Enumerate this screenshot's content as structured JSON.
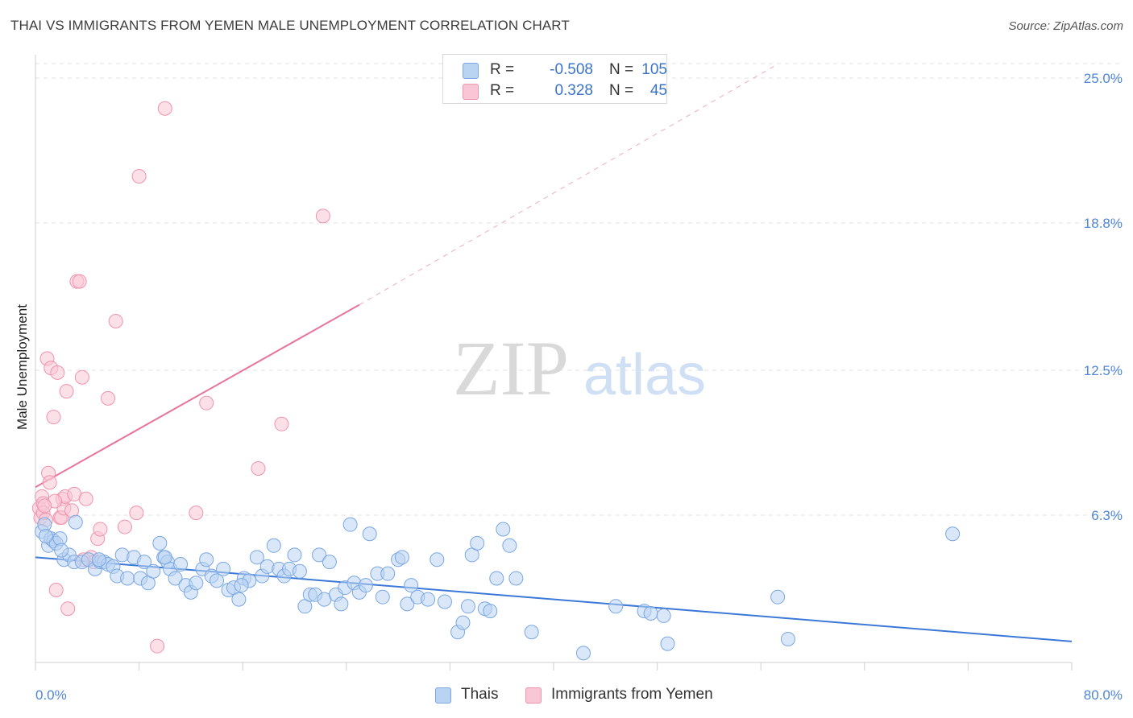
{
  "header": {
    "title": "THAI VS IMMIGRANTS FROM YEMEN MALE UNEMPLOYMENT CORRELATION CHART",
    "source": "Source: ZipAtlas.com"
  },
  "watermark": {
    "zip": "ZIP",
    "atlas": "atlas"
  },
  "legend": {
    "rows": [
      {
        "r_label": "R =",
        "r_value": "-0.508",
        "n_label": "N =",
        "n_value": "105",
        "fill": "#b9d3f3",
        "stroke": "#7aa7e3"
      },
      {
        "r_label": "R =",
        "r_value": "0.328",
        "n_label": "N =",
        "n_value": "45",
        "fill": "#f9c6d5",
        "stroke": "#ef93ad"
      }
    ]
  },
  "bottom_legend": [
    {
      "label": "Thais",
      "fill": "#b9d3f3",
      "stroke": "#7aa7e3"
    },
    {
      "label": "Immigrants from Yemen",
      "fill": "#f9c6d5",
      "stroke": "#ef93ad"
    }
  ],
  "chart_data": {
    "type": "scatter",
    "title": "THAI VS IMMIGRANTS FROM YEMEN MALE UNEMPLOYMENT CORRELATION CHART",
    "xlabel": "",
    "ylabel": "Male Unemployment",
    "xlim": [
      0,
      80
    ],
    "ylim": [
      0,
      26
    ],
    "x_tick_labels": [
      "0.0%",
      "80.0%"
    ],
    "y_ticks": [
      6.3,
      12.5,
      18.8,
      25.0
    ],
    "y_tick_labels": [
      "6.3%",
      "12.5%",
      "18.8%",
      "25.0%"
    ],
    "grid": true,
    "legend_position": "top-center",
    "colors": {
      "thais": "#3b78d8",
      "yemen": "#e8739b"
    },
    "series": [
      {
        "name": "Thais",
        "color": "#7aa7e3",
        "trend": {
          "x": [
            0,
            80
          ],
          "y": [
            4.5,
            0.9
          ],
          "style": "solid"
        },
        "points": [
          [
            0.5,
            5.6
          ],
          [
            0.7,
            5.9
          ],
          [
            1.0,
            5.0
          ],
          [
            1.2,
            5.3
          ],
          [
            1.4,
            5.2
          ],
          [
            1.6,
            5.1
          ],
          [
            1.9,
            5.3
          ],
          [
            2.2,
            4.4
          ],
          [
            2.6,
            4.6
          ],
          [
            3.1,
            6.0
          ],
          [
            3.0,
            4.3
          ],
          [
            3.6,
            4.3
          ],
          [
            4.1,
            4.4
          ],
          [
            4.6,
            4.0
          ],
          [
            5.0,
            4.3
          ],
          [
            5.3,
            4.3
          ],
          [
            5.6,
            4.2
          ],
          [
            6.0,
            4.1
          ],
          [
            6.3,
            3.7
          ],
          [
            6.7,
            4.6
          ],
          [
            7.1,
            3.6
          ],
          [
            7.6,
            4.5
          ],
          [
            8.1,
            3.6
          ],
          [
            8.4,
            4.3
          ],
          [
            8.7,
            3.4
          ],
          [
            9.1,
            3.9
          ],
          [
            9.6,
            5.1
          ],
          [
            9.9,
            4.5
          ],
          [
            10.2,
            4.3
          ],
          [
            10.4,
            4.0
          ],
          [
            10.8,
            3.6
          ],
          [
            11.2,
            4.2
          ],
          [
            11.6,
            3.3
          ],
          [
            12.0,
            3.0
          ],
          [
            12.4,
            3.4
          ],
          [
            12.9,
            4.0
          ],
          [
            13.2,
            4.4
          ],
          [
            13.6,
            3.7
          ],
          [
            14.0,
            3.5
          ],
          [
            14.5,
            4.0
          ],
          [
            14.9,
            3.1
          ],
          [
            15.3,
            3.2
          ],
          [
            15.7,
            2.7
          ],
          [
            16.1,
            3.6
          ],
          [
            16.5,
            3.5
          ],
          [
            17.1,
            4.5
          ],
          [
            17.5,
            3.7
          ],
          [
            17.9,
            4.1
          ],
          [
            18.4,
            5.0
          ],
          [
            18.8,
            4.0
          ],
          [
            19.2,
            3.7
          ],
          [
            19.6,
            4.0
          ],
          [
            20.0,
            4.6
          ],
          [
            20.4,
            3.9
          ],
          [
            20.8,
            2.4
          ],
          [
            21.2,
            2.9
          ],
          [
            21.6,
            2.9
          ],
          [
            21.9,
            4.6
          ],
          [
            22.3,
            2.7
          ],
          [
            22.7,
            4.3
          ],
          [
            23.2,
            2.9
          ],
          [
            23.6,
            2.5
          ],
          [
            23.9,
            3.2
          ],
          [
            24.3,
            5.9
          ],
          [
            24.6,
            3.4
          ],
          [
            25.0,
            3.0
          ],
          [
            25.5,
            3.3
          ],
          [
            25.8,
            5.5
          ],
          [
            26.4,
            3.8
          ],
          [
            26.8,
            2.8
          ],
          [
            27.2,
            3.8
          ],
          [
            28.0,
            4.4
          ],
          [
            28.3,
            4.5
          ],
          [
            28.7,
            2.5
          ],
          [
            29.0,
            3.3
          ],
          [
            29.5,
            2.8
          ],
          [
            30.3,
            2.7
          ],
          [
            31.0,
            4.4
          ],
          [
            31.6,
            2.6
          ],
          [
            32.6,
            1.3
          ],
          [
            33.0,
            1.7
          ],
          [
            33.4,
            2.4
          ],
          [
            33.7,
            4.6
          ],
          [
            34.1,
            5.1
          ],
          [
            34.7,
            2.3
          ],
          [
            35.1,
            2.2
          ],
          [
            35.6,
            3.6
          ],
          [
            36.1,
            5.7
          ],
          [
            36.6,
            5.0
          ],
          [
            37.1,
            3.6
          ],
          [
            38.3,
            1.3
          ],
          [
            42.3,
            0.4
          ],
          [
            44.8,
            2.4
          ],
          [
            47.0,
            2.2
          ],
          [
            47.5,
            2.1
          ],
          [
            48.5,
            2.0
          ],
          [
            48.8,
            0.8
          ],
          [
            57.3,
            2.8
          ],
          [
            58.1,
            1.0
          ],
          [
            70.8,
            5.5
          ],
          [
            0.8,
            5.4
          ],
          [
            2.0,
            4.8
          ],
          [
            4.9,
            4.4
          ],
          [
            10.0,
            4.5
          ],
          [
            15.9,
            3.3
          ]
        ]
      },
      {
        "name": "Immigrants from Yemen",
        "color": "#ef93ad",
        "trend": {
          "x": [
            0,
            25
          ],
          "y": [
            7.5,
            15.3
          ],
          "style": "solid",
          "extended_to": [
            57,
            25.5
          ],
          "extended_style": "dashed"
        },
        "points": [
          [
            0.3,
            6.6
          ],
          [
            0.4,
            6.2
          ],
          [
            0.5,
            7.1
          ],
          [
            0.6,
            6.8
          ],
          [
            0.6,
            6.4
          ],
          [
            0.8,
            6.1
          ],
          [
            0.9,
            13.0
          ],
          [
            1.0,
            8.1
          ],
          [
            1.1,
            7.7
          ],
          [
            1.2,
            12.6
          ],
          [
            1.4,
            10.5
          ],
          [
            1.6,
            3.1
          ],
          [
            1.7,
            12.4
          ],
          [
            1.9,
            6.2
          ],
          [
            2.0,
            6.2
          ],
          [
            2.1,
            7.0
          ],
          [
            2.2,
            6.6
          ],
          [
            2.3,
            7.1
          ],
          [
            2.4,
            11.6
          ],
          [
            2.5,
            2.3
          ],
          [
            3.0,
            7.2
          ],
          [
            3.2,
            16.3
          ],
          [
            3.4,
            16.3
          ],
          [
            3.6,
            12.2
          ],
          [
            3.9,
            7.0
          ],
          [
            4.3,
            4.5
          ],
          [
            4.5,
            4.3
          ],
          [
            4.8,
            5.3
          ],
          [
            5.0,
            5.7
          ],
          [
            5.6,
            11.3
          ],
          [
            6.2,
            14.6
          ],
          [
            6.9,
            5.8
          ],
          [
            7.8,
            6.4
          ],
          [
            8.0,
            20.8
          ],
          [
            9.4,
            0.7
          ],
          [
            10.0,
            23.7
          ],
          [
            12.4,
            6.4
          ],
          [
            13.2,
            11.1
          ],
          [
            17.2,
            8.3
          ],
          [
            19.0,
            10.2
          ],
          [
            22.2,
            19.1
          ],
          [
            1.5,
            6.9
          ],
          [
            2.8,
            6.5
          ],
          [
            3.7,
            4.4
          ],
          [
            0.7,
            6.7
          ]
        ]
      }
    ]
  }
}
